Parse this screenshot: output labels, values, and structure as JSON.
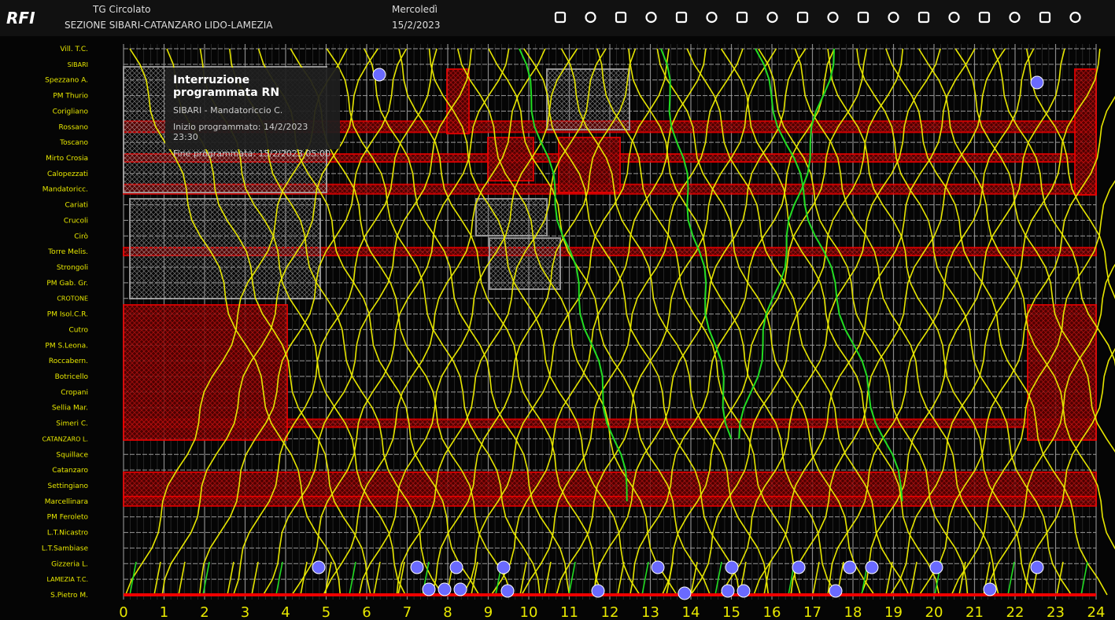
{
  "header": {
    "logo": "RFI",
    "view": "TG Circolato",
    "section": "SEZIONE SIBARI-CATANZARO LIDO-LAMEZIA",
    "weekday": "Mercoledì",
    "date": "15/2/2023"
  },
  "stations": [
    "Vill. T.C.",
    "SIBARI",
    "Spezzano A.",
    "PM Thurio",
    "Corigliano",
    "Rossano",
    "Toscano",
    "Mirto Crosia",
    "Calopezzati",
    "Mandatoricc.",
    "Cariati",
    "Crucoli",
    "Cirò",
    "Torre Melis.",
    "Strongoli",
    "PM Gab. Gr.",
    "CROTONE",
    "PM Isol.C.R.",
    "Cutro",
    "PM S.Leona.",
    "Roccabern.",
    "Botricello",
    "Cropani",
    "Sellia Mar.",
    "Simeri C.",
    "CATANZARO L.",
    "Squillace",
    "Catanzaro",
    "Settingiano",
    "Marcellinara",
    "PM Feroleto",
    "L.T.Nicastro",
    "L.T.Sambiase",
    "Gizzeria L.",
    "LAMEZIA T.C.",
    "S.Pietro M."
  ],
  "hours": [
    0,
    1,
    2,
    3,
    4,
    5,
    6,
    7,
    8,
    9,
    10,
    11,
    12,
    13,
    14,
    15,
    16,
    17,
    18,
    19,
    20,
    21,
    22,
    23,
    24
  ],
  "tooltip": {
    "title": "Interruzione programmata RN",
    "stretch": "SIBARI - Mandatoriccio C.",
    "start": "Inizio programmato: 14/2/2023 23:30",
    "end": "Fine programmata: 15/2/2023 05:00"
  }
}
